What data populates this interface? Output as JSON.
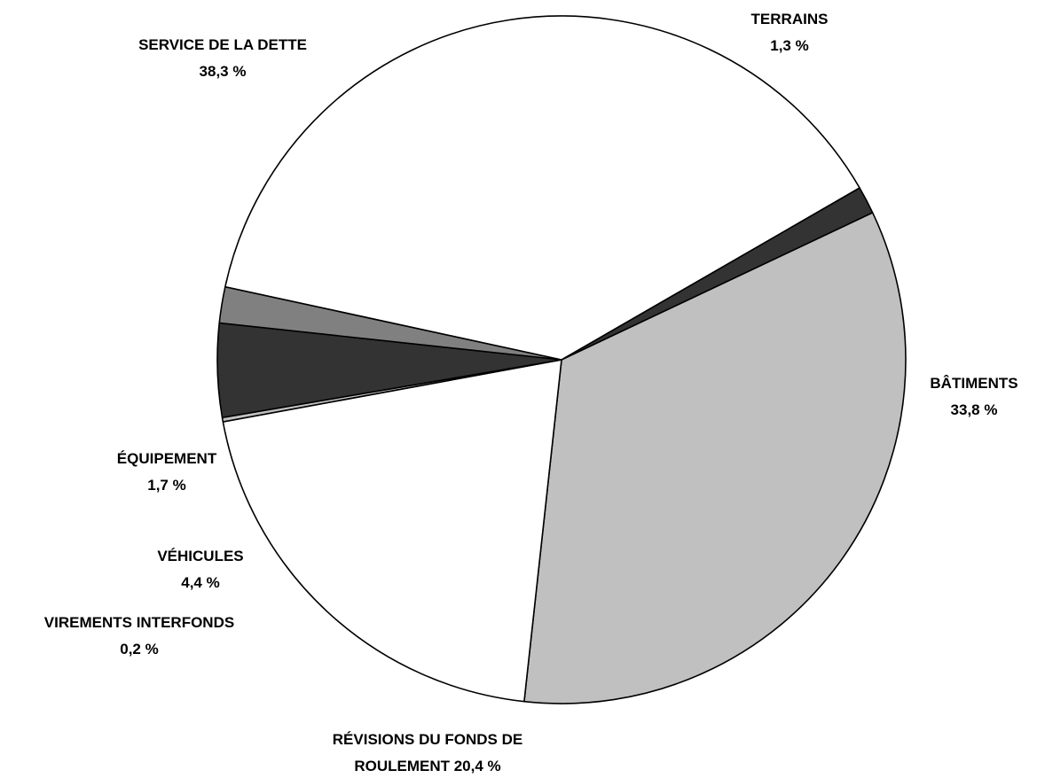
{
  "chart_data": {
    "type": "pie",
    "title": "",
    "start_angle_deg": 60,
    "direction": "clockwise",
    "slices": [
      {
        "label_lines": [
          "TERRAINS",
          "1,3 %"
        ],
        "value": 1.3,
        "color": "#333333"
      },
      {
        "label_lines": [
          "BÂTIMENTS",
          "33,8 %"
        ],
        "value": 33.8,
        "color": "#c0c0c0"
      },
      {
        "label_lines": [
          "RÉVISIONS DU FONDS DE",
          "ROULEMENT 20,4 %"
        ],
        "value": 20.4,
        "color": "#ffffff"
      },
      {
        "label_lines": [
          "VIREMENTS INTERFONDS",
          "0,2 %"
        ],
        "value": 0.2,
        "color": "#c0c0c0"
      },
      {
        "label_lines": [
          "VÉHICULES",
          "4,4 %"
        ],
        "value": 4.4,
        "color": "#333333"
      },
      {
        "label_lines": [
          "ÉQUIPEMENT",
          "1,7 %"
        ],
        "value": 1.7,
        "color": "#808080"
      },
      {
        "label_lines": [
          "SERVICE DE LA DETTE",
          "38,3 %"
        ],
        "value": 38.3,
        "color": "#ffffff"
      }
    ]
  }
}
